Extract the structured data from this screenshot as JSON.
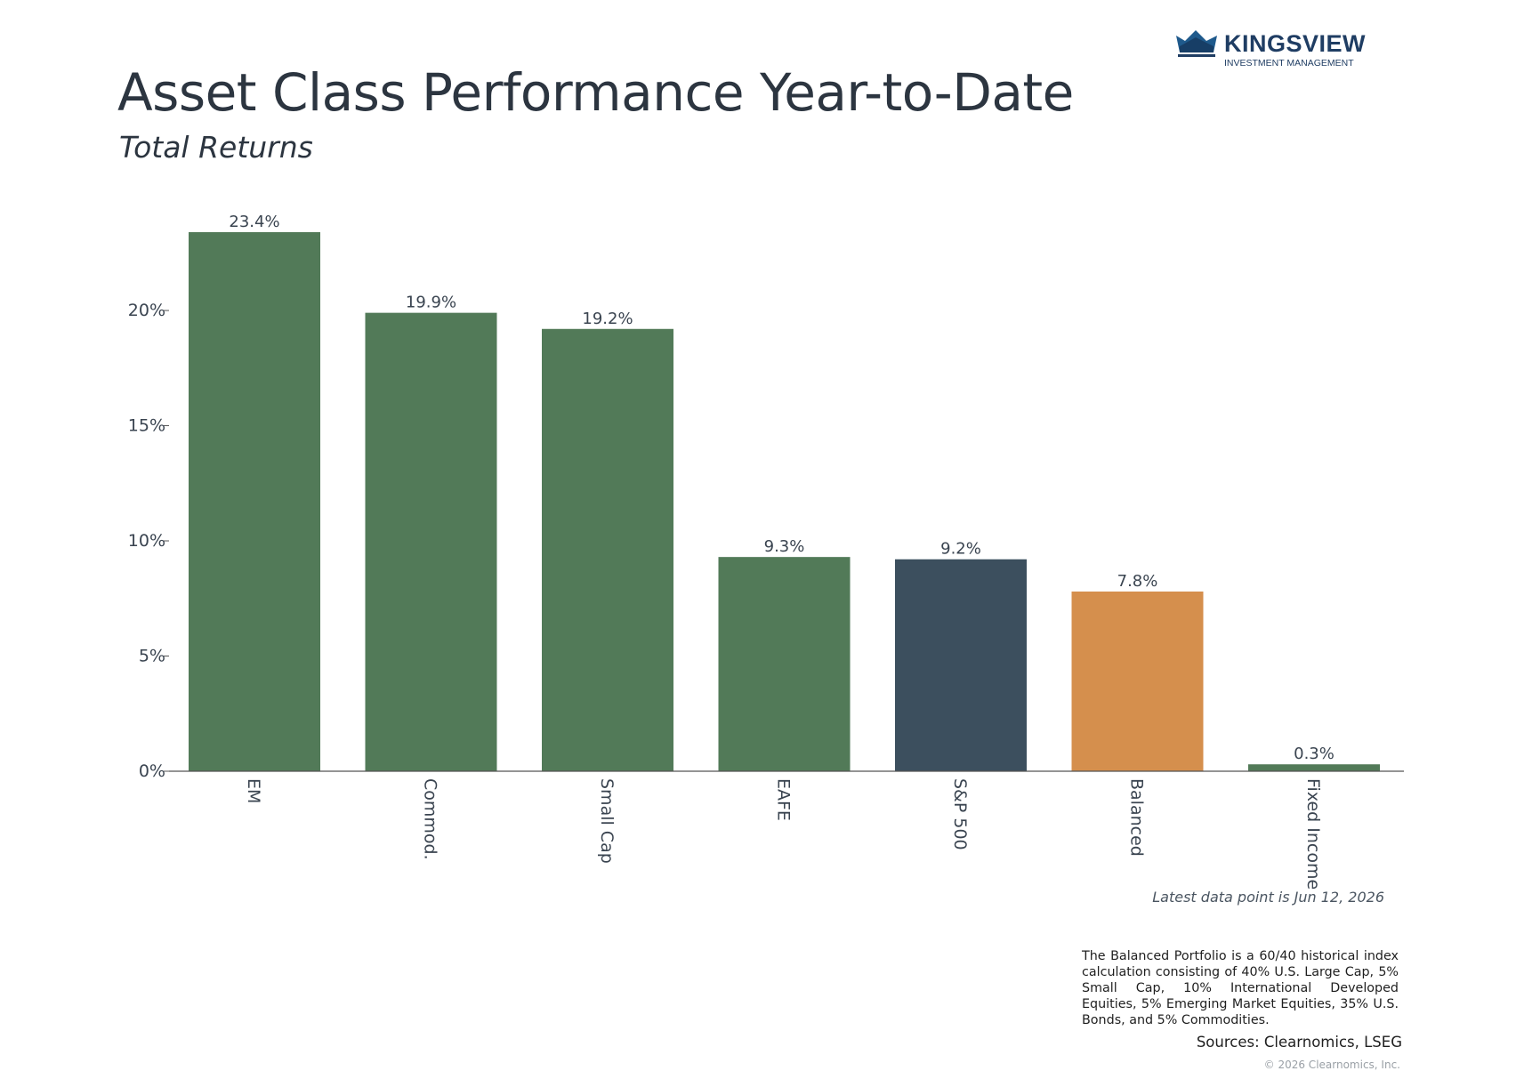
{
  "header": {
    "title": "Asset Class Performance Year-to-Date",
    "subtitle": "Total Returns"
  },
  "logo": {
    "name": "KINGSVIEW",
    "tagline": "INVESTMENT MANAGEMENT",
    "icon": "crown-icon",
    "color": "#1f3d63"
  },
  "chart_data": {
    "type": "bar",
    "title": "",
    "xlabel": "",
    "ylabel": "",
    "categories": [
      "EM",
      "Commod.",
      "Small Cap",
      "EAFE",
      "S&P 500",
      "Balanced",
      "Fixed Income"
    ],
    "values": [
      23.4,
      19.9,
      19.2,
      9.3,
      9.2,
      7.8,
      0.3
    ],
    "value_labels": [
      "23.4%",
      "19.9%",
      "19.2%",
      "9.3%",
      "9.2%",
      "7.8%",
      "0.3%"
    ],
    "colors": [
      "#527a58",
      "#527a58",
      "#527a58",
      "#527a58",
      "#3c4f5e",
      "#d58f4d",
      "#527a58"
    ],
    "ylim": [
      0,
      23.4
    ],
    "yticks": [
      0,
      5,
      10,
      15,
      20
    ],
    "ytick_labels": [
      "0%",
      "5%",
      "10%",
      "15%",
      "20%"
    ],
    "grid": false,
    "legend": "none"
  },
  "notes": {
    "latest": "Latest data point is Jun 12, 2026",
    "footnote": "The Balanced Portfolio is a 60/40 historical index calculation consisting of 40% U.S. Large Cap, 5% Small Cap, 10% International Developed Equities, 5% Emerging Market Equities, 35% U.S. Bonds, and 5% Commodities.",
    "sources": "Sources: Clearnomics, LSEG",
    "copyright": "© 2026 Clearnomics, Inc."
  }
}
